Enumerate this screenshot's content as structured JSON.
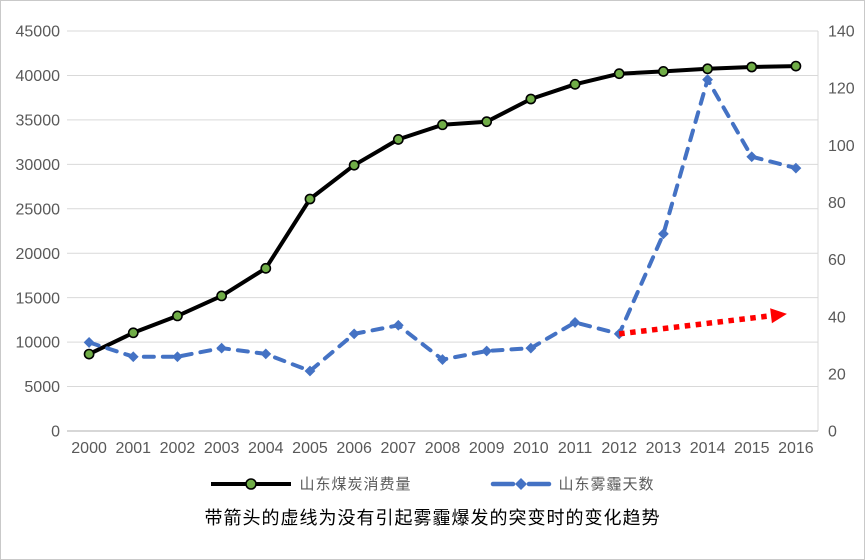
{
  "figure": {
    "background": "#ffffff",
    "border_color": "#c9c9c9"
  },
  "caption": "带箭头的虚线为没有引起雾霾爆发的突变时的变化趋势",
  "chart_data": {
    "type": "line",
    "title": "",
    "categories": [
      "2000",
      "2001",
      "2002",
      "2003",
      "2004",
      "2005",
      "2006",
      "2007",
      "2008",
      "2009",
      "2010",
      "2011",
      "2012",
      "2013",
      "2014",
      "2015",
      "2016"
    ],
    "series": [
      {
        "name": "山东煤炭消费量",
        "axis": "left",
        "style": "solid",
        "color": "#000000",
        "marker": "circle",
        "marker_fill": "#70AD47",
        "marker_stroke": "#000000",
        "values": [
          8650,
          11050,
          12950,
          15200,
          18300,
          26100,
          29900,
          32800,
          34450,
          34800,
          37350,
          39000,
          40200,
          40450,
          40750,
          40950,
          41050
        ]
      },
      {
        "name": "山东雾霾天数",
        "axis": "right",
        "style": "dashed",
        "color": "#4472C4",
        "marker": "diamond",
        "marker_fill": "#4472C4",
        "values": [
          31,
          26,
          26,
          29,
          27,
          21,
          34,
          37,
          25,
          28,
          29,
          38,
          34,
          69,
          123,
          96,
          92
        ]
      }
    ],
    "annotation_arrow": {
      "description": "red dotted arrow showing hypothetical trend without haze outbreak",
      "axis": "right",
      "from_year": "2012",
      "from_value": 34,
      "to_year": "2016",
      "to_value": 41,
      "color": "#FF0000",
      "style": "dotted"
    },
    "left_axis": {
      "min": 0,
      "max": 45000,
      "step": 5000,
      "tick_labels": [
        "45000",
        "40000",
        "35000",
        "30000",
        "25000",
        "20000",
        "15000",
        "10000",
        "5000",
        "0"
      ]
    },
    "right_axis": {
      "min": 0,
      "max": 140,
      "step": 20,
      "tick_labels": [
        "140",
        "120",
        "100",
        "80",
        "60",
        "40",
        "20",
        "0"
      ]
    },
    "grid": true,
    "legend_position": "bottom",
    "colors": {
      "gridline": "#D9D9D9",
      "axis_line": "#BFBFBF",
      "tick_text": "#595959"
    }
  }
}
